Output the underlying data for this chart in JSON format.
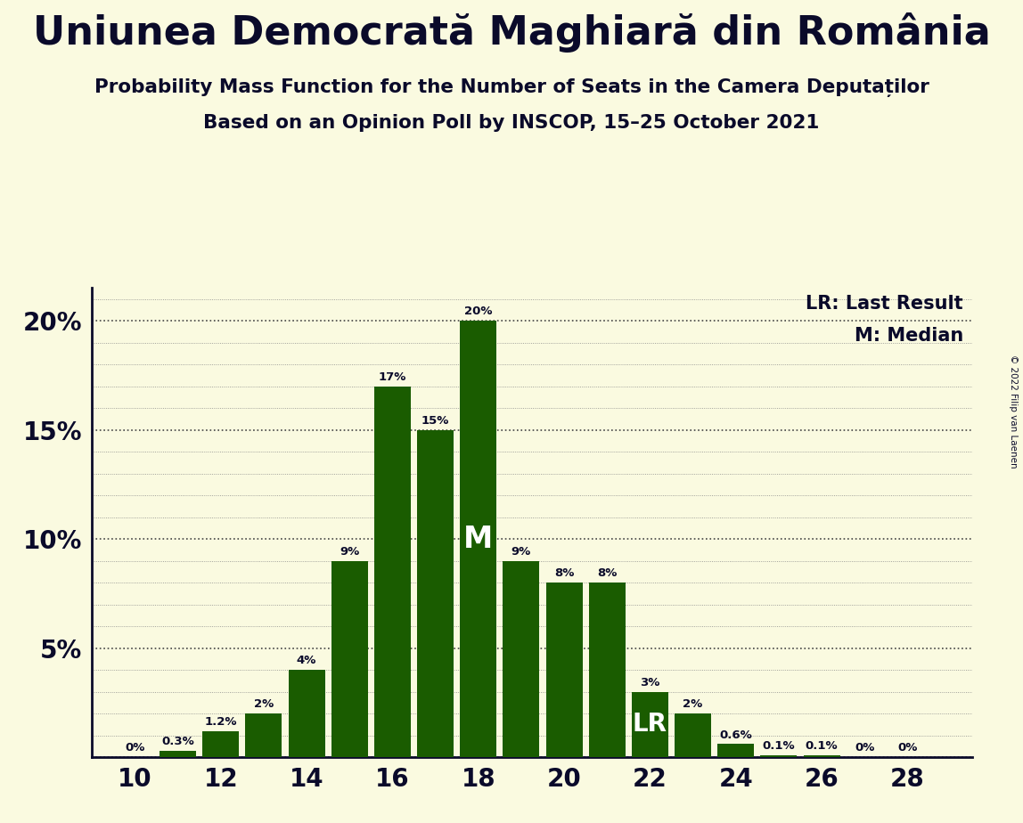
{
  "title": "Uniunea Democrată Maghiară din România",
  "subtitle1": "Probability Mass Function for the Number of Seats in the Camera Deputaților",
  "subtitle2": "Based on an Opinion Poll by INSCOP, 15–25 October 2021",
  "copyright": "© 2022 Filip van Laenen",
  "seats": [
    10,
    11,
    12,
    13,
    14,
    15,
    16,
    17,
    18,
    19,
    20,
    21,
    22,
    23,
    24,
    25,
    26,
    27,
    28
  ],
  "probabilities": [
    0.0,
    0.3,
    1.2,
    2.0,
    4.0,
    9.0,
    17.0,
    15.0,
    20.0,
    9.0,
    8.0,
    8.0,
    3.0,
    2.0,
    0.6,
    0.1,
    0.1,
    0.0,
    0.0
  ],
  "bar_color": "#1a5c00",
  "background_color": "#fafae0",
  "text_color": "#0a0a2a",
  "median_seat": 18,
  "lr_seat": 22,
  "legend_lr": "LR: Last Result",
  "legend_m": "M: Median",
  "yticks": [
    0,
    5,
    10,
    15,
    20
  ],
  "ylim": [
    0,
    21.5
  ],
  "xlim": [
    9,
    29.5
  ]
}
